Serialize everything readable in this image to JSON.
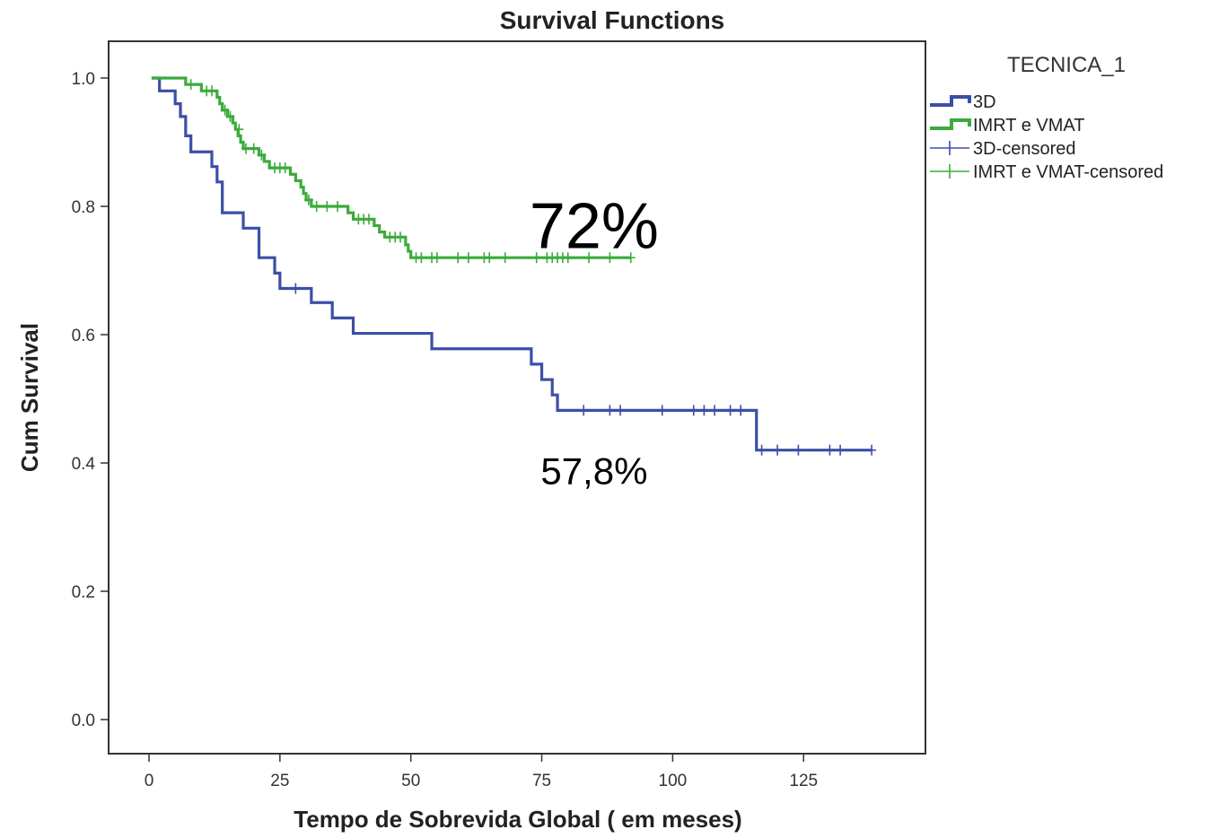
{
  "chart_data": {
    "type": "line",
    "title": "Survival Functions",
    "xlabel": "Tempo de Sobrevida Global ( em meses)",
    "ylabel": "Cum Survival",
    "xlim": [
      0,
      140
    ],
    "ylim": [
      0,
      1.0
    ],
    "x_ticks": [
      "0",
      "25",
      "50",
      "75",
      "100",
      "125"
    ],
    "x_tick_values": [
      0,
      25,
      50,
      75,
      100,
      125
    ],
    "y_ticks": [
      "0.0",
      "0.2",
      "0.4",
      "0.6",
      "0.8",
      "1.0"
    ],
    "y_tick_values": [
      0,
      0.2,
      0.4,
      0.6,
      0.8,
      1.0
    ],
    "grid": false,
    "legend": {
      "title": "TECNICA_1",
      "placement": "right",
      "entries": [
        "3D",
        "IMRT e VMAT",
        "3D-censored",
        "IMRT e VMAT-censored"
      ]
    },
    "series": [
      {
        "name": "3D",
        "color": "#3c4fa5",
        "steps": [
          [
            0.5,
            1.0
          ],
          [
            2,
            0.98
          ],
          [
            5,
            0.96
          ],
          [
            6,
            0.94
          ],
          [
            7,
            0.91
          ],
          [
            8,
            0.885
          ],
          [
            12,
            0.862
          ],
          [
            13,
            0.838
          ],
          [
            14,
            0.79
          ],
          [
            18,
            0.766
          ],
          [
            21,
            0.72
          ],
          [
            24,
            0.696
          ],
          [
            25,
            0.672
          ],
          [
            31,
            0.65
          ],
          [
            35,
            0.626
          ],
          [
            39,
            0.602
          ],
          [
            54,
            0.578
          ],
          [
            73,
            0.554
          ],
          [
            75,
            0.53
          ],
          [
            77,
            0.506
          ],
          [
            78,
            0.482
          ],
          [
            116,
            0.42
          ],
          [
            138,
            0.42
          ]
        ],
        "censored": [
          [
            28,
            0.672
          ],
          [
            83,
            0.482
          ],
          [
            88,
            0.482
          ],
          [
            90,
            0.482
          ],
          [
            98,
            0.482
          ],
          [
            104,
            0.482
          ],
          [
            106,
            0.482
          ],
          [
            108,
            0.482
          ],
          [
            111,
            0.482
          ],
          [
            113,
            0.482
          ],
          [
            117,
            0.42
          ],
          [
            120,
            0.42
          ],
          [
            124,
            0.42
          ],
          [
            130,
            0.42
          ],
          [
            132,
            0.42
          ],
          [
            138,
            0.42
          ]
        ]
      },
      {
        "name": "IMRT e VMAT",
        "color": "#3bab3b",
        "steps": [
          [
            0.5,
            1.0
          ],
          [
            7,
            0.99
          ],
          [
            10,
            0.98
          ],
          [
            13,
            0.97
          ],
          [
            13.5,
            0.96
          ],
          [
            14,
            0.95
          ],
          [
            15,
            0.94
          ],
          [
            16,
            0.93
          ],
          [
            16.5,
            0.92
          ],
          [
            17,
            0.91
          ],
          [
            17.5,
            0.9
          ],
          [
            18,
            0.89
          ],
          [
            21,
            0.88
          ],
          [
            22,
            0.87
          ],
          [
            23,
            0.86
          ],
          [
            27,
            0.85
          ],
          [
            28,
            0.84
          ],
          [
            29,
            0.83
          ],
          [
            29.5,
            0.82
          ],
          [
            30,
            0.81
          ],
          [
            31,
            0.8
          ],
          [
            38,
            0.79
          ],
          [
            39,
            0.78
          ],
          [
            43,
            0.77
          ],
          [
            44,
            0.76
          ],
          [
            45,
            0.752
          ],
          [
            49,
            0.74
          ],
          [
            49.5,
            0.73
          ],
          [
            50,
            0.72
          ],
          [
            92,
            0.72
          ]
        ],
        "censored": [
          [
            8,
            0.99
          ],
          [
            11,
            0.98
          ],
          [
            12,
            0.98
          ],
          [
            14.5,
            0.95
          ],
          [
            15.5,
            0.94
          ],
          [
            17.2,
            0.92
          ],
          [
            18.5,
            0.89
          ],
          [
            20,
            0.89
          ],
          [
            21.5,
            0.88
          ],
          [
            24,
            0.86
          ],
          [
            25,
            0.86
          ],
          [
            26,
            0.86
          ],
          [
            30.5,
            0.81
          ],
          [
            32,
            0.8
          ],
          [
            34,
            0.8
          ],
          [
            36,
            0.8
          ],
          [
            40,
            0.78
          ],
          [
            41,
            0.78
          ],
          [
            42,
            0.78
          ],
          [
            46,
            0.752
          ],
          [
            47,
            0.752
          ],
          [
            48,
            0.752
          ],
          [
            51,
            0.72
          ],
          [
            52,
            0.72
          ],
          [
            54,
            0.72
          ],
          [
            55,
            0.72
          ],
          [
            59,
            0.72
          ],
          [
            61,
            0.72
          ],
          [
            64,
            0.72
          ],
          [
            65,
            0.72
          ],
          [
            68,
            0.72
          ],
          [
            74,
            0.72
          ],
          [
            76,
            0.72
          ],
          [
            77,
            0.72
          ],
          [
            78,
            0.72
          ],
          [
            79,
            0.72
          ],
          [
            80,
            0.72
          ],
          [
            84,
            0.72
          ],
          [
            88,
            0.72
          ],
          [
            92,
            0.72
          ]
        ]
      }
    ],
    "annotations": [
      {
        "text": "72%",
        "x": 85,
        "y": 0.76,
        "size": "large"
      },
      {
        "text": "57,8%",
        "x": 85,
        "y": 0.395,
        "size": "medium"
      }
    ]
  }
}
